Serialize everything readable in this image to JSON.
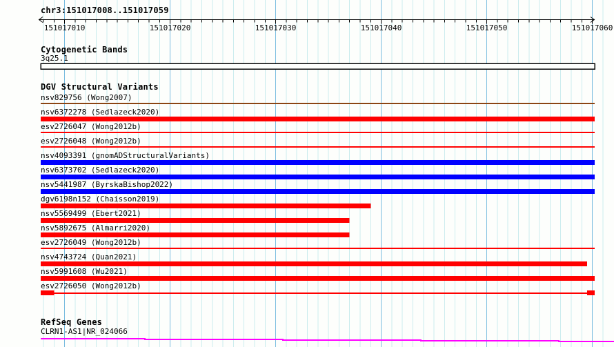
{
  "header": {
    "region_label": "chr3:151017008..151017059"
  },
  "colors": {
    "background": "#fdfefc",
    "grid_minor": "#cbecee",
    "grid_major": "#79bcdf",
    "axis": "#000000",
    "text": "#000000",
    "cytoband_outline": "#000000",
    "cytoband_fill": "#fdfefc",
    "variant_red": "#ff0000",
    "variant_blue": "#0000ff",
    "variant_brown": "#8b4513",
    "gene_magenta": "#ff00ff"
  },
  "ruler": {
    "start": 151017008,
    "end": 151017060,
    "minor_tick_bp": 1,
    "major_tick_bp": 10,
    "major_ticks": [
      {
        "bp": 151017010,
        "label": "151017010"
      },
      {
        "bp": 151017020,
        "label": "151017020"
      },
      {
        "bp": 151017030,
        "label": "151017030"
      },
      {
        "bp": 151017040,
        "label": "151017040"
      },
      {
        "bp": 151017050,
        "label": "151017050"
      },
      {
        "bp": 151017060,
        "label": "151017060"
      }
    ]
  },
  "sections": {
    "cytogenetic": {
      "title": "Cytogenetic Bands",
      "band_label": "3q25.1"
    },
    "dgv": {
      "title": "DGV Structural Variants"
    },
    "refseq": {
      "title": "RefSeq Genes",
      "gene_label": "CLRN1-AS1|NR_024066"
    }
  },
  "chart_data": {
    "type": "genome-browser-tracks",
    "title": "chr3:151017008..151017059",
    "region": {
      "chromosome": "chr3",
      "start": 151017008,
      "end": 151017059
    },
    "axis": {
      "start": 151017008,
      "end": 151017060,
      "tick_interval_bp": 1,
      "label_interval_bp": 10,
      "grid": true
    },
    "cytoband": {
      "name": "3q25.1",
      "glyph": "band-box",
      "span": "full"
    },
    "tracks": [
      {
        "name": "nsv829756 (Wong2007)",
        "glyph": "line",
        "color": "#8b4513",
        "start": 151017007,
        "end": 151017061,
        "clipped": true
      },
      {
        "name": "nsv6372278 (Sedlazeck2020)",
        "glyph": "box",
        "color": "#ff0000",
        "start": 151017007,
        "end": 151017061,
        "clipped": true
      },
      {
        "name": "esv2726047 (Wong2012b)",
        "glyph": "line",
        "color": "#ff0000",
        "start": 151017007,
        "end": 151017061,
        "clipped": true
      },
      {
        "name": "esv2726048 (Wong2012b)",
        "glyph": "line",
        "color": "#ff0000",
        "start": 151017007,
        "end": 151017061,
        "clipped": true
      },
      {
        "name": "nsv4093391 (gnomADStructuralVariants)",
        "glyph": "box",
        "color": "#0000ff",
        "start": 151017007,
        "end": 151017061,
        "clipped": true
      },
      {
        "name": "nsv6373702 (Sedlazeck2020)",
        "glyph": "box",
        "color": "#0000ff",
        "start": 151017007,
        "end": 151017061,
        "clipped": true
      },
      {
        "name": "nsv5441987 (ByrskaBishop2022)",
        "glyph": "box",
        "color": "#0000ff",
        "start": 151017007,
        "end": 151017061,
        "clipped": true
      },
      {
        "name": "dgv6198n152 (Chaisson2019)",
        "glyph": "box",
        "color": "#ff0000",
        "start": 151017007,
        "end": 151017039,
        "clipped": true
      },
      {
        "name": "nsv5569499 (Ebert2021)",
        "glyph": "box",
        "color": "#ff0000",
        "start": 151017007,
        "end": 151017037,
        "clipped": true
      },
      {
        "name": "nsv5892675 (Almarri2020)",
        "glyph": "box",
        "color": "#ff0000",
        "start": 151017007,
        "end": 151017037,
        "clipped": true
      },
      {
        "name": "esv2726049 (Wong2012b)",
        "glyph": "line",
        "color": "#ff0000",
        "start": 151017007,
        "end": 151017061,
        "clipped": true
      },
      {
        "name": "nsv4743724 (Quan2021)",
        "glyph": "box",
        "color": "#ff0000",
        "start": 151017007,
        "end": 151017059.5,
        "clipped": true
      },
      {
        "name": "nsv5991608 (Wu2021)",
        "glyph": "box",
        "color": "#ff0000",
        "start": 151017007,
        "end": 151017061,
        "clipped": true
      },
      {
        "name": "esv2726050 (Wong2012b)",
        "glyph": "breakpoint-pair",
        "color": "#ff0000",
        "start": 151017007,
        "end": 151017061,
        "block1_end": 151017009,
        "block2_start": 151017059.5,
        "clipped": true
      }
    ],
    "gene": {
      "name": "CLRN1-AS1|NR_024066",
      "glyph": "stepped-line",
      "span": "full"
    }
  }
}
